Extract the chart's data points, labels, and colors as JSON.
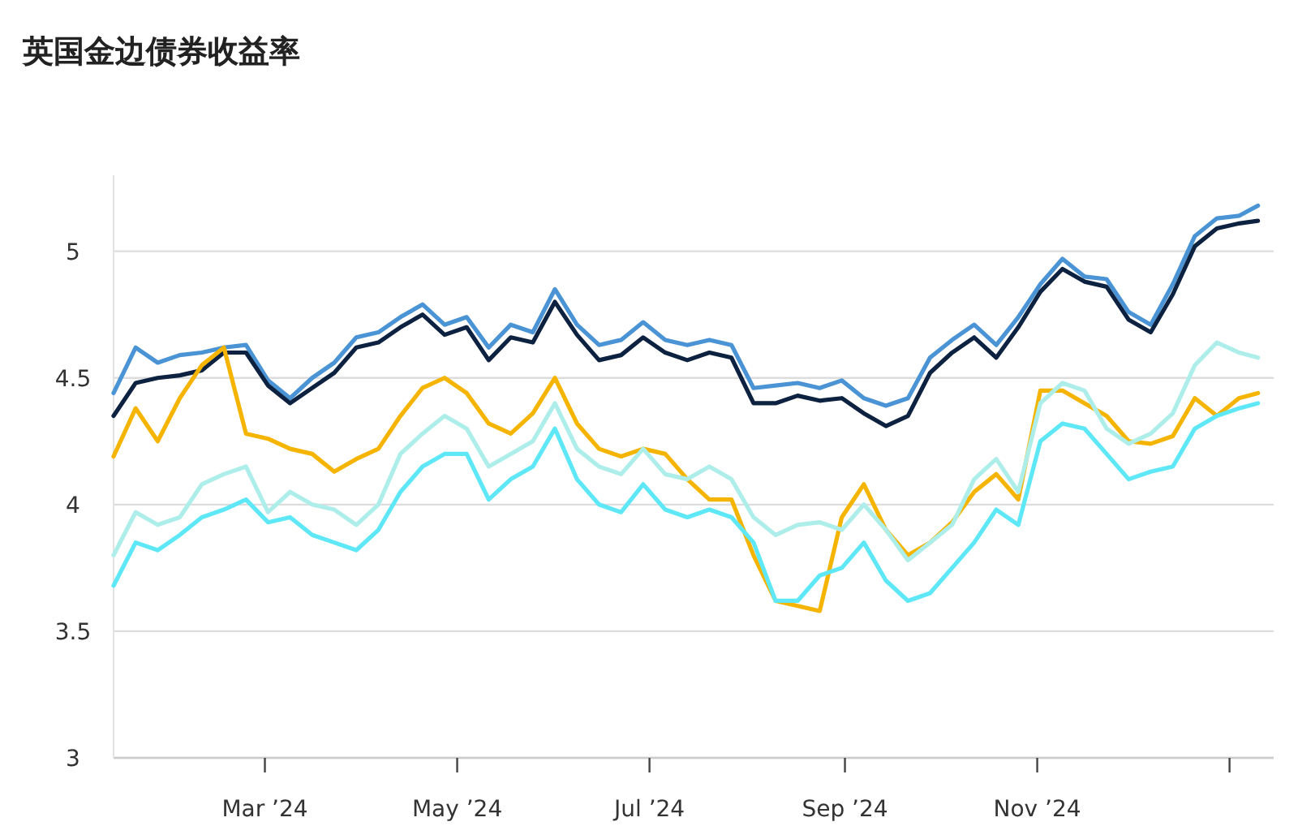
{
  "chart_data": {
    "type": "line",
    "title": "英国金边债券收益率",
    "x": [
      "2024-01-13",
      "2024-01-20",
      "2024-01-27",
      "2024-02-03",
      "2024-02-10",
      "2024-02-17",
      "2024-02-24",
      "2024-03-02",
      "2024-03-09",
      "2024-03-16",
      "2024-03-23",
      "2024-03-30",
      "2024-04-06",
      "2024-04-13",
      "2024-04-20",
      "2024-04-27",
      "2024-05-04",
      "2024-05-11",
      "2024-05-18",
      "2024-05-25",
      "2024-06-01",
      "2024-06-08",
      "2024-06-15",
      "2024-06-22",
      "2024-06-29",
      "2024-07-06",
      "2024-07-13",
      "2024-07-20",
      "2024-07-27",
      "2024-08-03",
      "2024-08-10",
      "2024-08-17",
      "2024-08-24",
      "2024-08-31",
      "2024-09-07",
      "2024-09-14",
      "2024-09-21",
      "2024-09-28",
      "2024-10-05",
      "2024-10-12",
      "2024-10-19",
      "2024-10-26",
      "2024-11-02",
      "2024-11-09",
      "2024-11-16",
      "2024-11-23",
      "2024-11-30",
      "2024-12-07",
      "2024-12-14",
      "2024-12-21",
      "2024-12-28",
      "2025-01-04",
      "2025-01-10"
    ],
    "series": [
      {
        "color": "#4a93d4",
        "values": [
          4.44,
          4.62,
          4.56,
          4.59,
          4.6,
          4.62,
          4.63,
          4.49,
          4.42,
          4.5,
          4.56,
          4.66,
          4.68,
          4.74,
          4.79,
          4.71,
          4.74,
          4.62,
          4.71,
          4.68,
          4.85,
          4.71,
          4.63,
          4.65,
          4.72,
          4.65,
          4.63,
          4.65,
          4.63,
          4.46,
          4.47,
          4.48,
          4.46,
          4.49,
          4.42,
          4.39,
          4.42,
          4.58,
          4.65,
          4.71,
          4.63,
          4.74,
          4.87,
          4.97,
          4.9,
          4.89,
          4.76,
          4.71,
          4.87,
          5.06,
          5.13,
          5.14,
          5.18
        ]
      },
      {
        "color": "#0d2240",
        "values": [
          4.35,
          4.48,
          4.5,
          4.51,
          4.53,
          4.6,
          4.6,
          4.47,
          4.4,
          4.46,
          4.52,
          4.62,
          4.64,
          4.7,
          4.75,
          4.67,
          4.7,
          4.57,
          4.66,
          4.64,
          4.8,
          4.67,
          4.57,
          4.59,
          4.66,
          4.6,
          4.57,
          4.6,
          4.58,
          4.4,
          4.4,
          4.43,
          4.41,
          4.42,
          4.36,
          4.31,
          4.35,
          4.52,
          4.6,
          4.66,
          4.58,
          4.7,
          4.84,
          4.93,
          4.88,
          4.86,
          4.73,
          4.68,
          4.83,
          5.02,
          5.09,
          5.11,
          5.12
        ]
      },
      {
        "color": "#f5b400",
        "values": [
          4.19,
          4.38,
          4.25,
          4.42,
          4.55,
          4.62,
          4.28,
          4.26,
          4.22,
          4.2,
          4.13,
          4.18,
          4.22,
          4.35,
          4.46,
          4.5,
          4.44,
          4.32,
          4.28,
          4.36,
          4.5,
          4.32,
          4.22,
          4.19,
          4.22,
          4.2,
          4.1,
          4.02,
          4.02,
          3.8,
          3.62,
          3.6,
          3.58,
          3.95,
          4.08,
          3.9,
          3.8,
          3.85,
          3.93,
          4.05,
          4.12,
          4.02,
          4.45,
          4.45,
          4.4,
          4.35,
          4.25,
          4.24,
          4.27,
          4.42,
          4.35,
          4.42,
          4.44
        ]
      },
      {
        "color": "#aeeeea",
        "values": [
          3.8,
          3.97,
          3.92,
          3.95,
          4.08,
          4.12,
          4.15,
          3.97,
          4.05,
          4.0,
          3.98,
          3.92,
          4.0,
          4.2,
          4.28,
          4.35,
          4.3,
          4.15,
          4.2,
          4.25,
          4.4,
          4.22,
          4.15,
          4.12,
          4.22,
          4.12,
          4.1,
          4.15,
          4.1,
          3.95,
          3.88,
          3.92,
          3.93,
          3.9,
          4.0,
          3.9,
          3.78,
          3.85,
          3.92,
          4.1,
          4.18,
          4.05,
          4.4,
          4.48,
          4.45,
          4.3,
          4.24,
          4.28,
          4.36,
          4.55,
          4.64,
          4.6,
          4.58
        ]
      },
      {
        "color": "#5ee8f7",
        "values": [
          3.68,
          3.85,
          3.82,
          3.88,
          3.95,
          3.98,
          4.02,
          3.93,
          3.95,
          3.88,
          3.85,
          3.82,
          3.9,
          4.05,
          4.15,
          4.2,
          4.2,
          4.02,
          4.1,
          4.15,
          4.3,
          4.1,
          4.0,
          3.97,
          4.08,
          3.98,
          3.95,
          3.98,
          3.95,
          3.85,
          3.62,
          3.62,
          3.72,
          3.75,
          3.85,
          3.7,
          3.62,
          3.65,
          3.75,
          3.85,
          3.98,
          3.92,
          4.25,
          4.32,
          4.3,
          4.2,
          4.1,
          4.13,
          4.15,
          4.3,
          4.35,
          4.38,
          4.4
        ]
      }
    ],
    "xlim": [
      "2024-01-13",
      "2025-01-15"
    ],
    "xticks": [
      {
        "value": "2024-03-01",
        "label": "Mar ’24"
      },
      {
        "value": "2024-05-01",
        "label": "May ’24"
      },
      {
        "value": "2024-07-01",
        "label": "Jul ’24"
      },
      {
        "value": "2024-09-01",
        "label": "Sep ’24"
      },
      {
        "value": "2024-11-01",
        "label": "Nov ’24"
      },
      {
        "value": "2025-01-01",
        "label": null
      }
    ],
    "ylim": [
      3,
      5.3
    ],
    "yticks": [
      3,
      3.5,
      4,
      4.5,
      5
    ],
    "grid": "y",
    "marker": "none",
    "line_style": "solid"
  }
}
